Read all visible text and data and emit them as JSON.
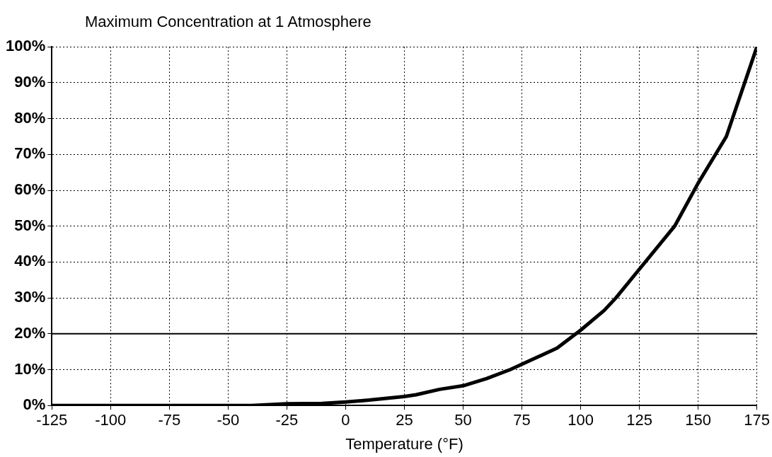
{
  "chart_data": {
    "type": "line",
    "title": "Maximum Concentration at 1 Atmosphere",
    "xlabel": "Temperature (°F)",
    "x": [
      -125,
      -100,
      -75,
      -50,
      -40,
      -25,
      -10,
      0,
      10,
      25,
      30,
      40,
      50,
      60,
      70,
      80,
      90,
      100,
      110,
      115,
      125,
      140,
      150,
      162,
      175
    ],
    "series": [
      {
        "color": "#000000",
        "values": [
          0,
          0,
          0,
          0,
          0,
          0.5,
          0.6,
          1,
          1.5,
          2.5,
          3,
          4.5,
          5.5,
          7.5,
          10,
          13,
          16,
          21,
          26.5,
          30,
          38,
          50,
          62,
          75,
          100
        ]
      }
    ],
    "xlim": [
      -125,
      175
    ],
    "xticks": [
      -125,
      -100,
      -75,
      -50,
      -25,
      0,
      25,
      50,
      75,
      100,
      125,
      150,
      175
    ],
    "ylim": [
      0,
      100
    ],
    "yticks": [
      {
        "value": 0,
        "label": "0%"
      },
      {
        "value": 10,
        "label": "10%"
      },
      {
        "value": 20,
        "label": "20%"
      },
      {
        "value": 30,
        "label": "30%"
      },
      {
        "value": 40,
        "label": "40%"
      },
      {
        "value": 50,
        "label": "50%"
      },
      {
        "value": 60,
        "label": "60%"
      },
      {
        "value": 70,
        "label": "70%"
      },
      {
        "value": 80,
        "label": "80%"
      },
      {
        "value": 90,
        "label": "90%"
      },
      {
        "value": 100,
        "label": "100%"
      }
    ],
    "grid": true,
    "ref_lines": [
      {
        "axis": "y",
        "value": 20,
        "color": "#000000"
      }
    ],
    "marker": "none",
    "line_style": "solid",
    "legend": false
  }
}
